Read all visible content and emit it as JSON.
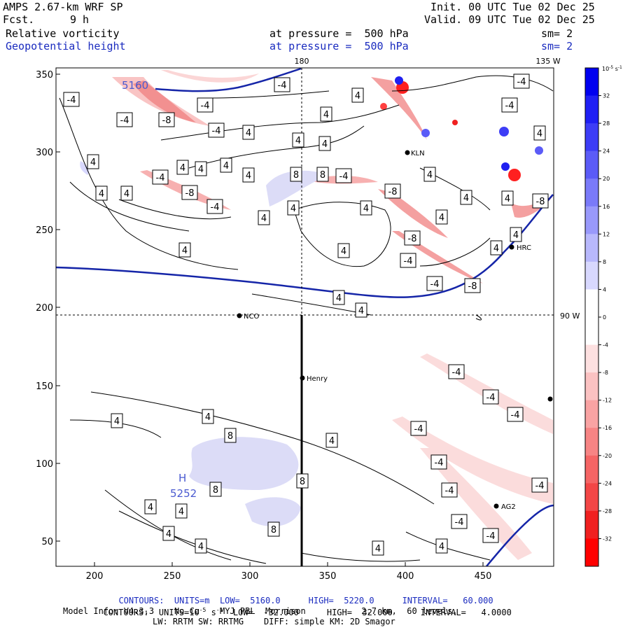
{
  "header": {
    "model": "AMPS 2.67-km WRF SP",
    "fcst_label": "Fcst.",
    "fcst_value": "9 h",
    "init": "Init. 00 UTC Tue 02 Dec 25",
    "valid": "Valid. 09 UTC Tue 02 Dec 25",
    "field1": "Relative vorticity",
    "field1_level": "at pressure =  500 hPa",
    "field1_sm": "sm= 2",
    "field2": "Geopotential height",
    "field2_level": "at pressure =  500 hPa",
    "field2_sm": "sm= 2"
  },
  "map": {
    "lon_labels": [
      "180",
      "135 W",
      "90 W"
    ],
    "x_ticks": [
      "200",
      "250",
      "300",
      "350",
      "400",
      "450"
    ],
    "y_ticks": [
      "350",
      "300",
      "250",
      "200",
      "150",
      "100",
      "50"
    ],
    "stations": [
      "NCO",
      "Henry",
      "KLN",
      "HRC",
      "AG2"
    ],
    "height_contour_labels": [
      "5160",
      "5252"
    ],
    "high_marker": "H",
    "vorticity_labels": [
      "-4",
      "-8",
      "4",
      "8"
    ]
  },
  "colorbar": {
    "units": "10",
    "units_exp": "-5",
    "units_suffix": "s",
    "units_suffix_exp": "-1",
    "ticks": [
      "32",
      "28",
      "24",
      "20",
      "16",
      "12",
      "8",
      "4",
      "0",
      "-4",
      "-8",
      "-12",
      "-16",
      "-20",
      "-24",
      "-28",
      "-32"
    ],
    "colors": [
      "#0000f0",
      "#1f1ff4",
      "#3d3df6",
      "#5b5bf7",
      "#7a7af9",
      "#9999fb",
      "#b8b8fc",
      "#d8d8fe",
      "#ffffff",
      "#ffffff",
      "#fde0e0",
      "#fbc2c2",
      "#f9a3a3",
      "#f78484",
      "#f56565",
      "#f34646",
      "#f02020",
      "#ff0000"
    ]
  },
  "footer": {
    "line1_prefix": "CONTOURS:  UNITS=m  LOW=  5160.0",
    "line1_high": "HIGH=  5220.0",
    "line1_interval": "INTERVAL=   60.000",
    "line2_prefix": "CONTOURS:  UNITS=10",
    "line2_exp": "-5",
    "line2_s": " s",
    "line2_sexp": "-1",
    "line2_low": "  LOW=  -32.000",
    "line2_high": "HIGH=  32.000",
    "line2_interval": "INTERVAL=   4.0000",
    "line3": "Model Info: V4.3.3    No Cu    MYJ PBL  Morrison           2.7 km,  60 levels,",
    "line4": "LW: RRTM SW: RRTMG    DIFF: simple KM: 2D Smagor"
  }
}
